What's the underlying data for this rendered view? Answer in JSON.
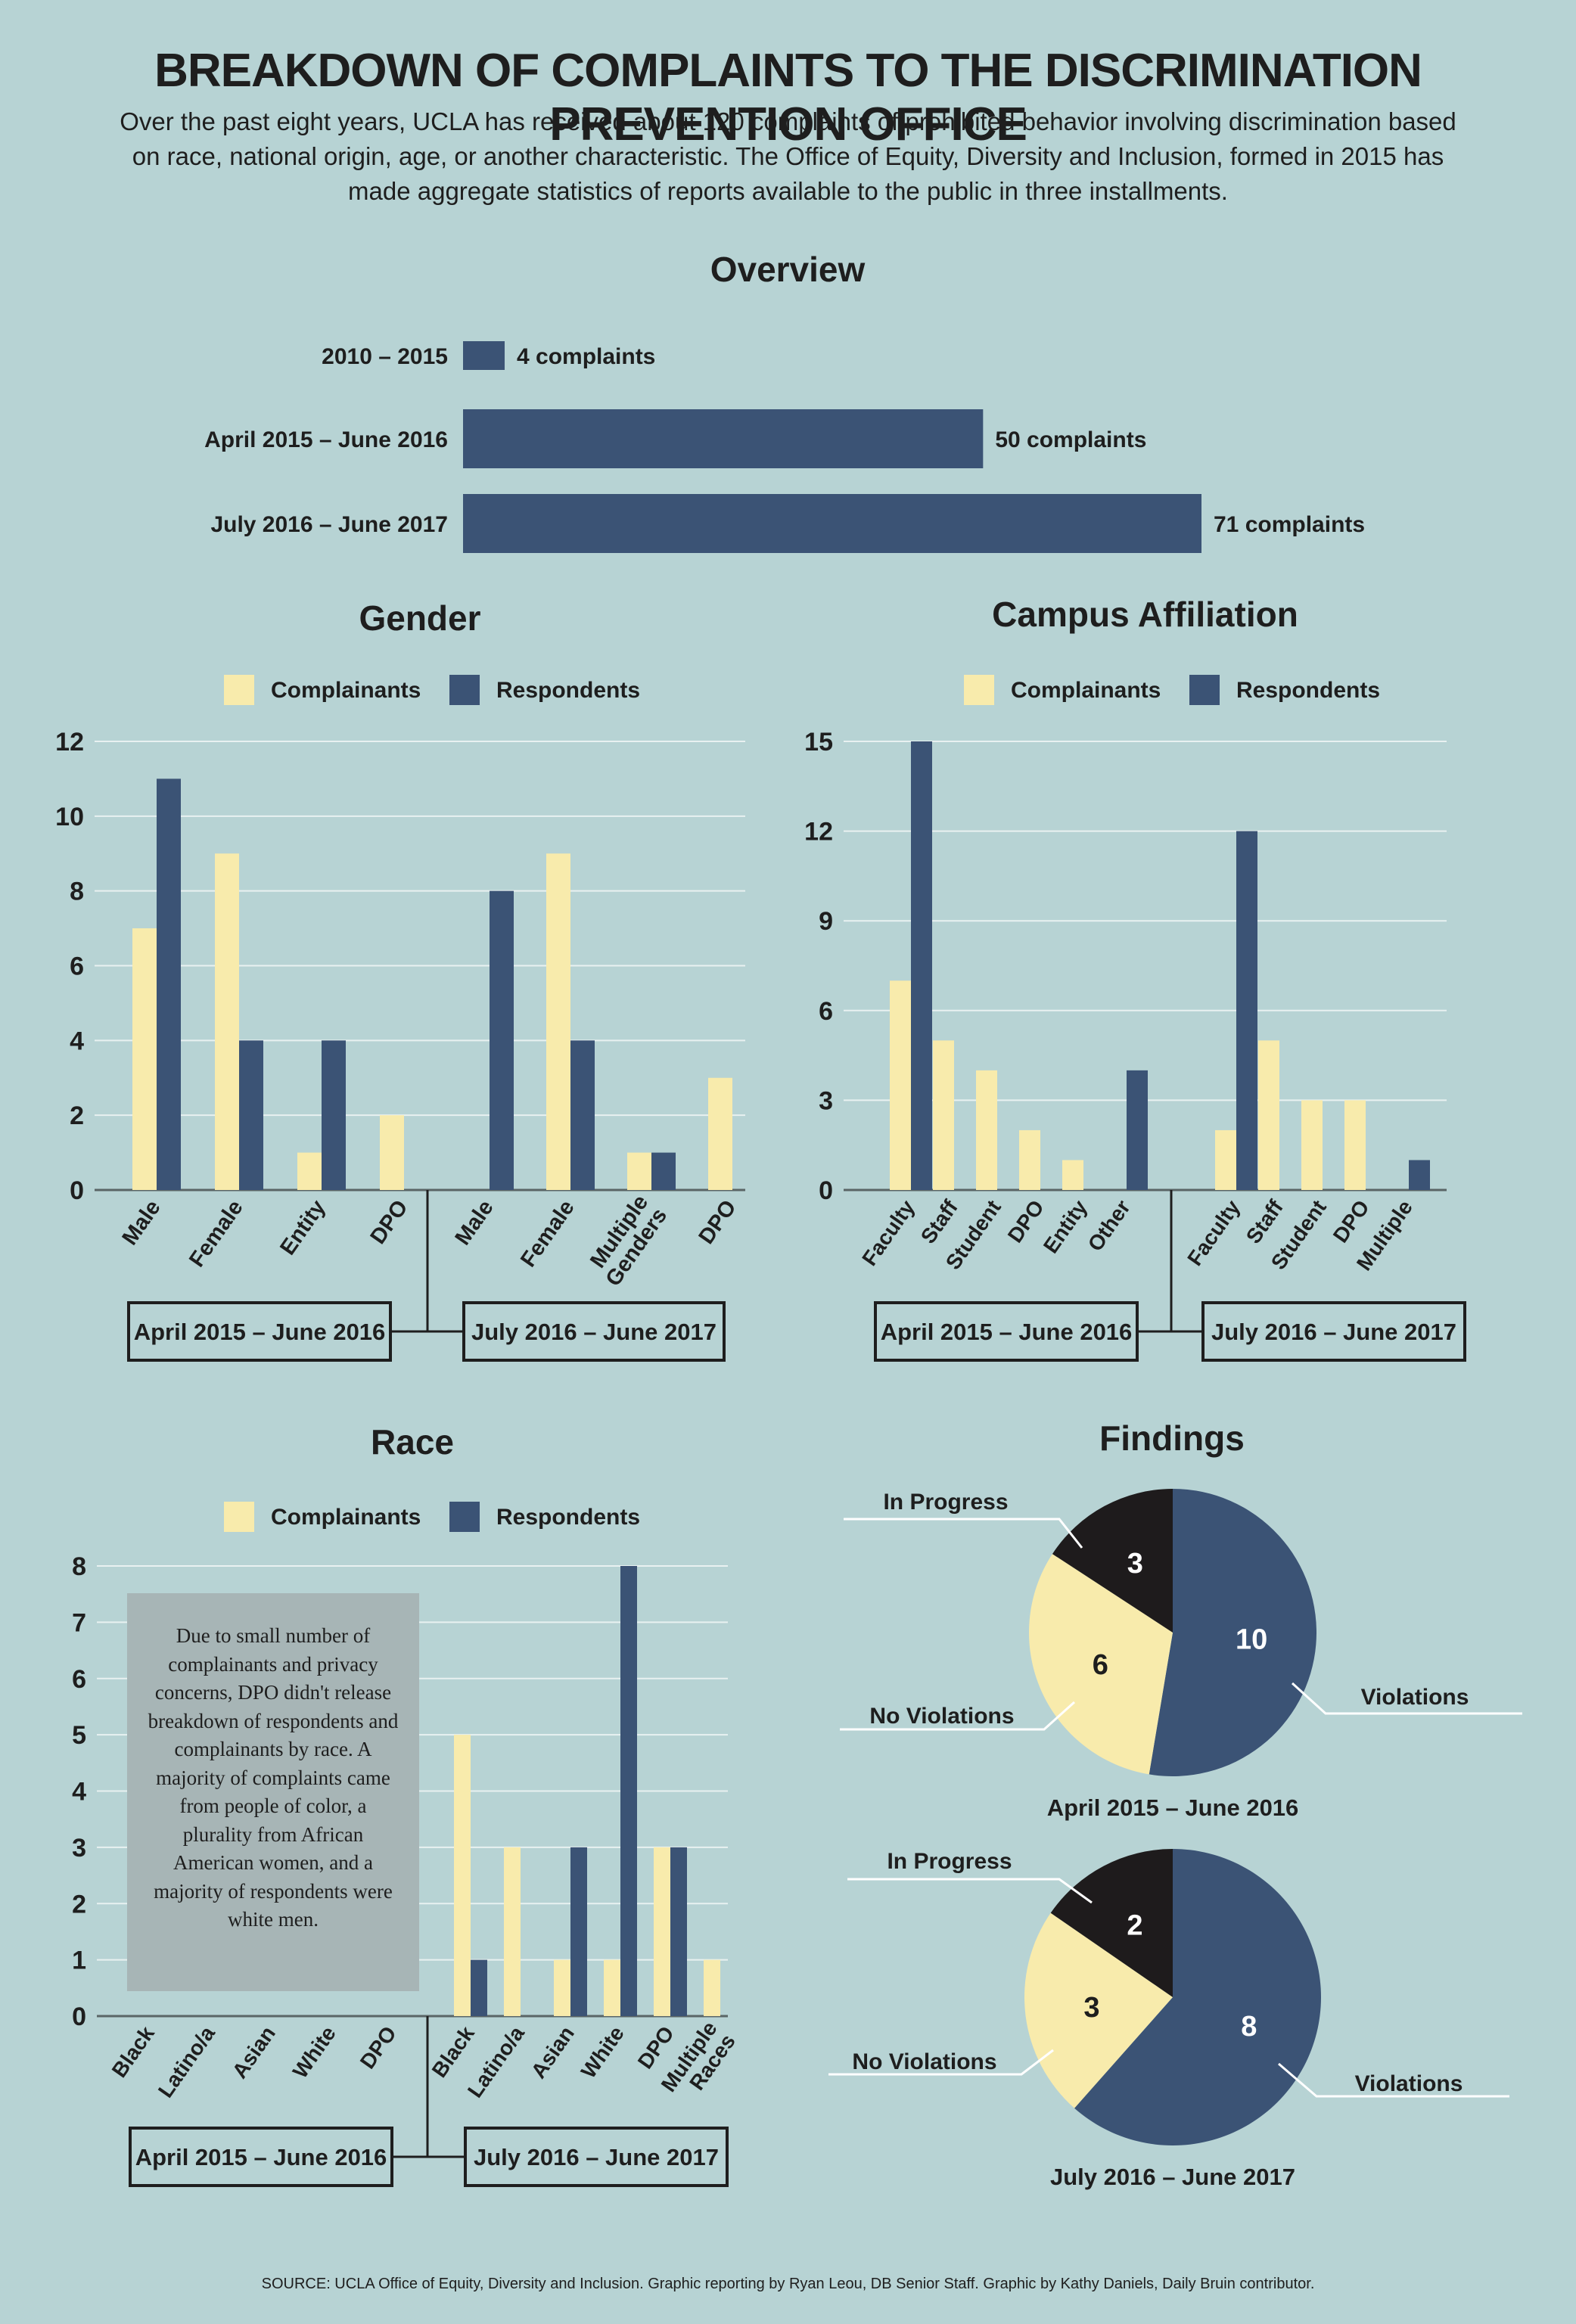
{
  "title": "BREAKDOWN OF COMPLAINTS TO THE DISCRIMINATION PREVENTION OFFICE",
  "intro": "Over the past eight years, UCLA has received about 120 complaints of prohibited behavior involving discrimination based on race, national origin, age, or another characteristic. The Office of Equity, Diversity and Inclusion, formed in 2015 has made aggregate statistics of reports available to the public in three installments.",
  "source": "SOURCE: UCLA Office of Equity, Diversity and Inclusion. Graphic reporting by Ryan Leou, DB Senior Staff. Graphic by Kathy Daniels, Daily Bruin contributor.",
  "colors": {
    "background": "#b7d3d4",
    "complainants": "#f8ebac",
    "respondents": "#3b5375",
    "in_progress": "#1e1b1c",
    "grid": "#e8f1f1",
    "axis": "#1e1e1e"
  },
  "legend": {
    "complainants": "Complainants",
    "respondents": "Respondents"
  },
  "period_labels": [
    "April 2015 – June 2016",
    "July 2016 – June 2017"
  ],
  "race_note": "Due to small number of complainants and privacy concerns, DPO didn't release breakdown of respondents and complainants by race. A majority of complaints came from people of color, a plurality from African American women, and a majority of respondents were white men.",
  "chart_data": [
    {
      "id": "overview",
      "type": "bar",
      "orientation": "horizontal",
      "title": "Overview",
      "categories": [
        "2010 – 2015",
        "April 2015 – June 2016",
        "July 2016 – June 2017"
      ],
      "values": [
        4,
        50,
        71
      ],
      "value_labels": [
        "4 complaints",
        "50 complaints",
        "71 complaints"
      ],
      "xlim": [
        0,
        71
      ]
    },
    {
      "id": "gender",
      "type": "bar",
      "title": "Gender",
      "groups": [
        {
          "label": "April 2015 – June 2016",
          "categories": [
            "Male",
            "Female",
            "Entity",
            "DPO"
          ]
        },
        {
          "label": "July 2016 – June 2017",
          "categories": [
            "Male",
            "Female",
            "Multiple Genders",
            "DPO"
          ]
        }
      ],
      "series": [
        {
          "name": "Complainants",
          "values": [
            7,
            9,
            1,
            2,
            0,
            9,
            1,
            3
          ]
        },
        {
          "name": "Respondents",
          "values": [
            11,
            4,
            4,
            0,
            8,
            4,
            1,
            0
          ]
        }
      ],
      "yticks": [
        "0",
        "2",
        "4",
        "6",
        "8",
        "10",
        "12"
      ],
      "ylim": [
        0,
        12
      ],
      "grid": true,
      "legend_position": "top"
    },
    {
      "id": "campus",
      "type": "bar",
      "title": "Campus Affiliation",
      "groups": [
        {
          "label": "April 2015 – June 2016",
          "categories": [
            "Faculty",
            "Staff",
            "Student",
            "DPO",
            "Entity",
            "Other"
          ]
        },
        {
          "label": "July 2016 – June 2017",
          "categories": [
            "Faculty",
            "Staff",
            "Student",
            "DPO",
            "Multiple"
          ]
        }
      ],
      "series": [
        {
          "name": "Complainants",
          "values": [
            7,
            5,
            4,
            2,
            1,
            0,
            2,
            5,
            3,
            3,
            0
          ]
        },
        {
          "name": "Respondents",
          "values": [
            15,
            0,
            0,
            0,
            0,
            4,
            12,
            0,
            0,
            0,
            1
          ]
        }
      ],
      "yticks": [
        "0",
        "3",
        "6",
        "9",
        "12",
        "15"
      ],
      "ylim": [
        0,
        15
      ],
      "grid": true,
      "legend_position": "top"
    },
    {
      "id": "race",
      "type": "bar",
      "title": "Race",
      "groups": [
        {
          "label": "April 2015 – June 2016",
          "categories": [
            "Black",
            "Latino/a",
            "Asian",
            "White",
            "DPO"
          ]
        },
        {
          "label": "July 2016 – June 2017",
          "categories": [
            "Black",
            "Latino/a",
            "Asian",
            "White",
            "DPO",
            "Multiple Races"
          ]
        }
      ],
      "series": [
        {
          "name": "Complainants",
          "values": [
            null,
            null,
            null,
            null,
            null,
            5,
            3,
            1,
            1,
            3,
            1
          ]
        },
        {
          "name": "Respondents",
          "values": [
            null,
            null,
            null,
            null,
            null,
            1,
            0,
            3,
            8,
            3,
            0
          ]
        }
      ],
      "yticks": [
        "0",
        "1",
        "2",
        "3",
        "4",
        "5",
        "6",
        "7",
        "8"
      ],
      "ylim": [
        0,
        8
      ],
      "grid": true,
      "legend_position": "top"
    },
    {
      "id": "findings",
      "type": "pie",
      "title": "Findings",
      "pies": [
        {
          "label": "April 2015 – June 2016",
          "slices": [
            {
              "name": "Violations",
              "value": 10
            },
            {
              "name": "No Violations",
              "value": 6
            },
            {
              "name": "In Progress",
              "value": 3
            }
          ]
        },
        {
          "label": "July 2016 – June 2017",
          "slices": [
            {
              "name": "Violations",
              "value": 8
            },
            {
              "name": "No Violations",
              "value": 3
            },
            {
              "name": "In Progress",
              "value": 2
            }
          ]
        }
      ]
    }
  ]
}
